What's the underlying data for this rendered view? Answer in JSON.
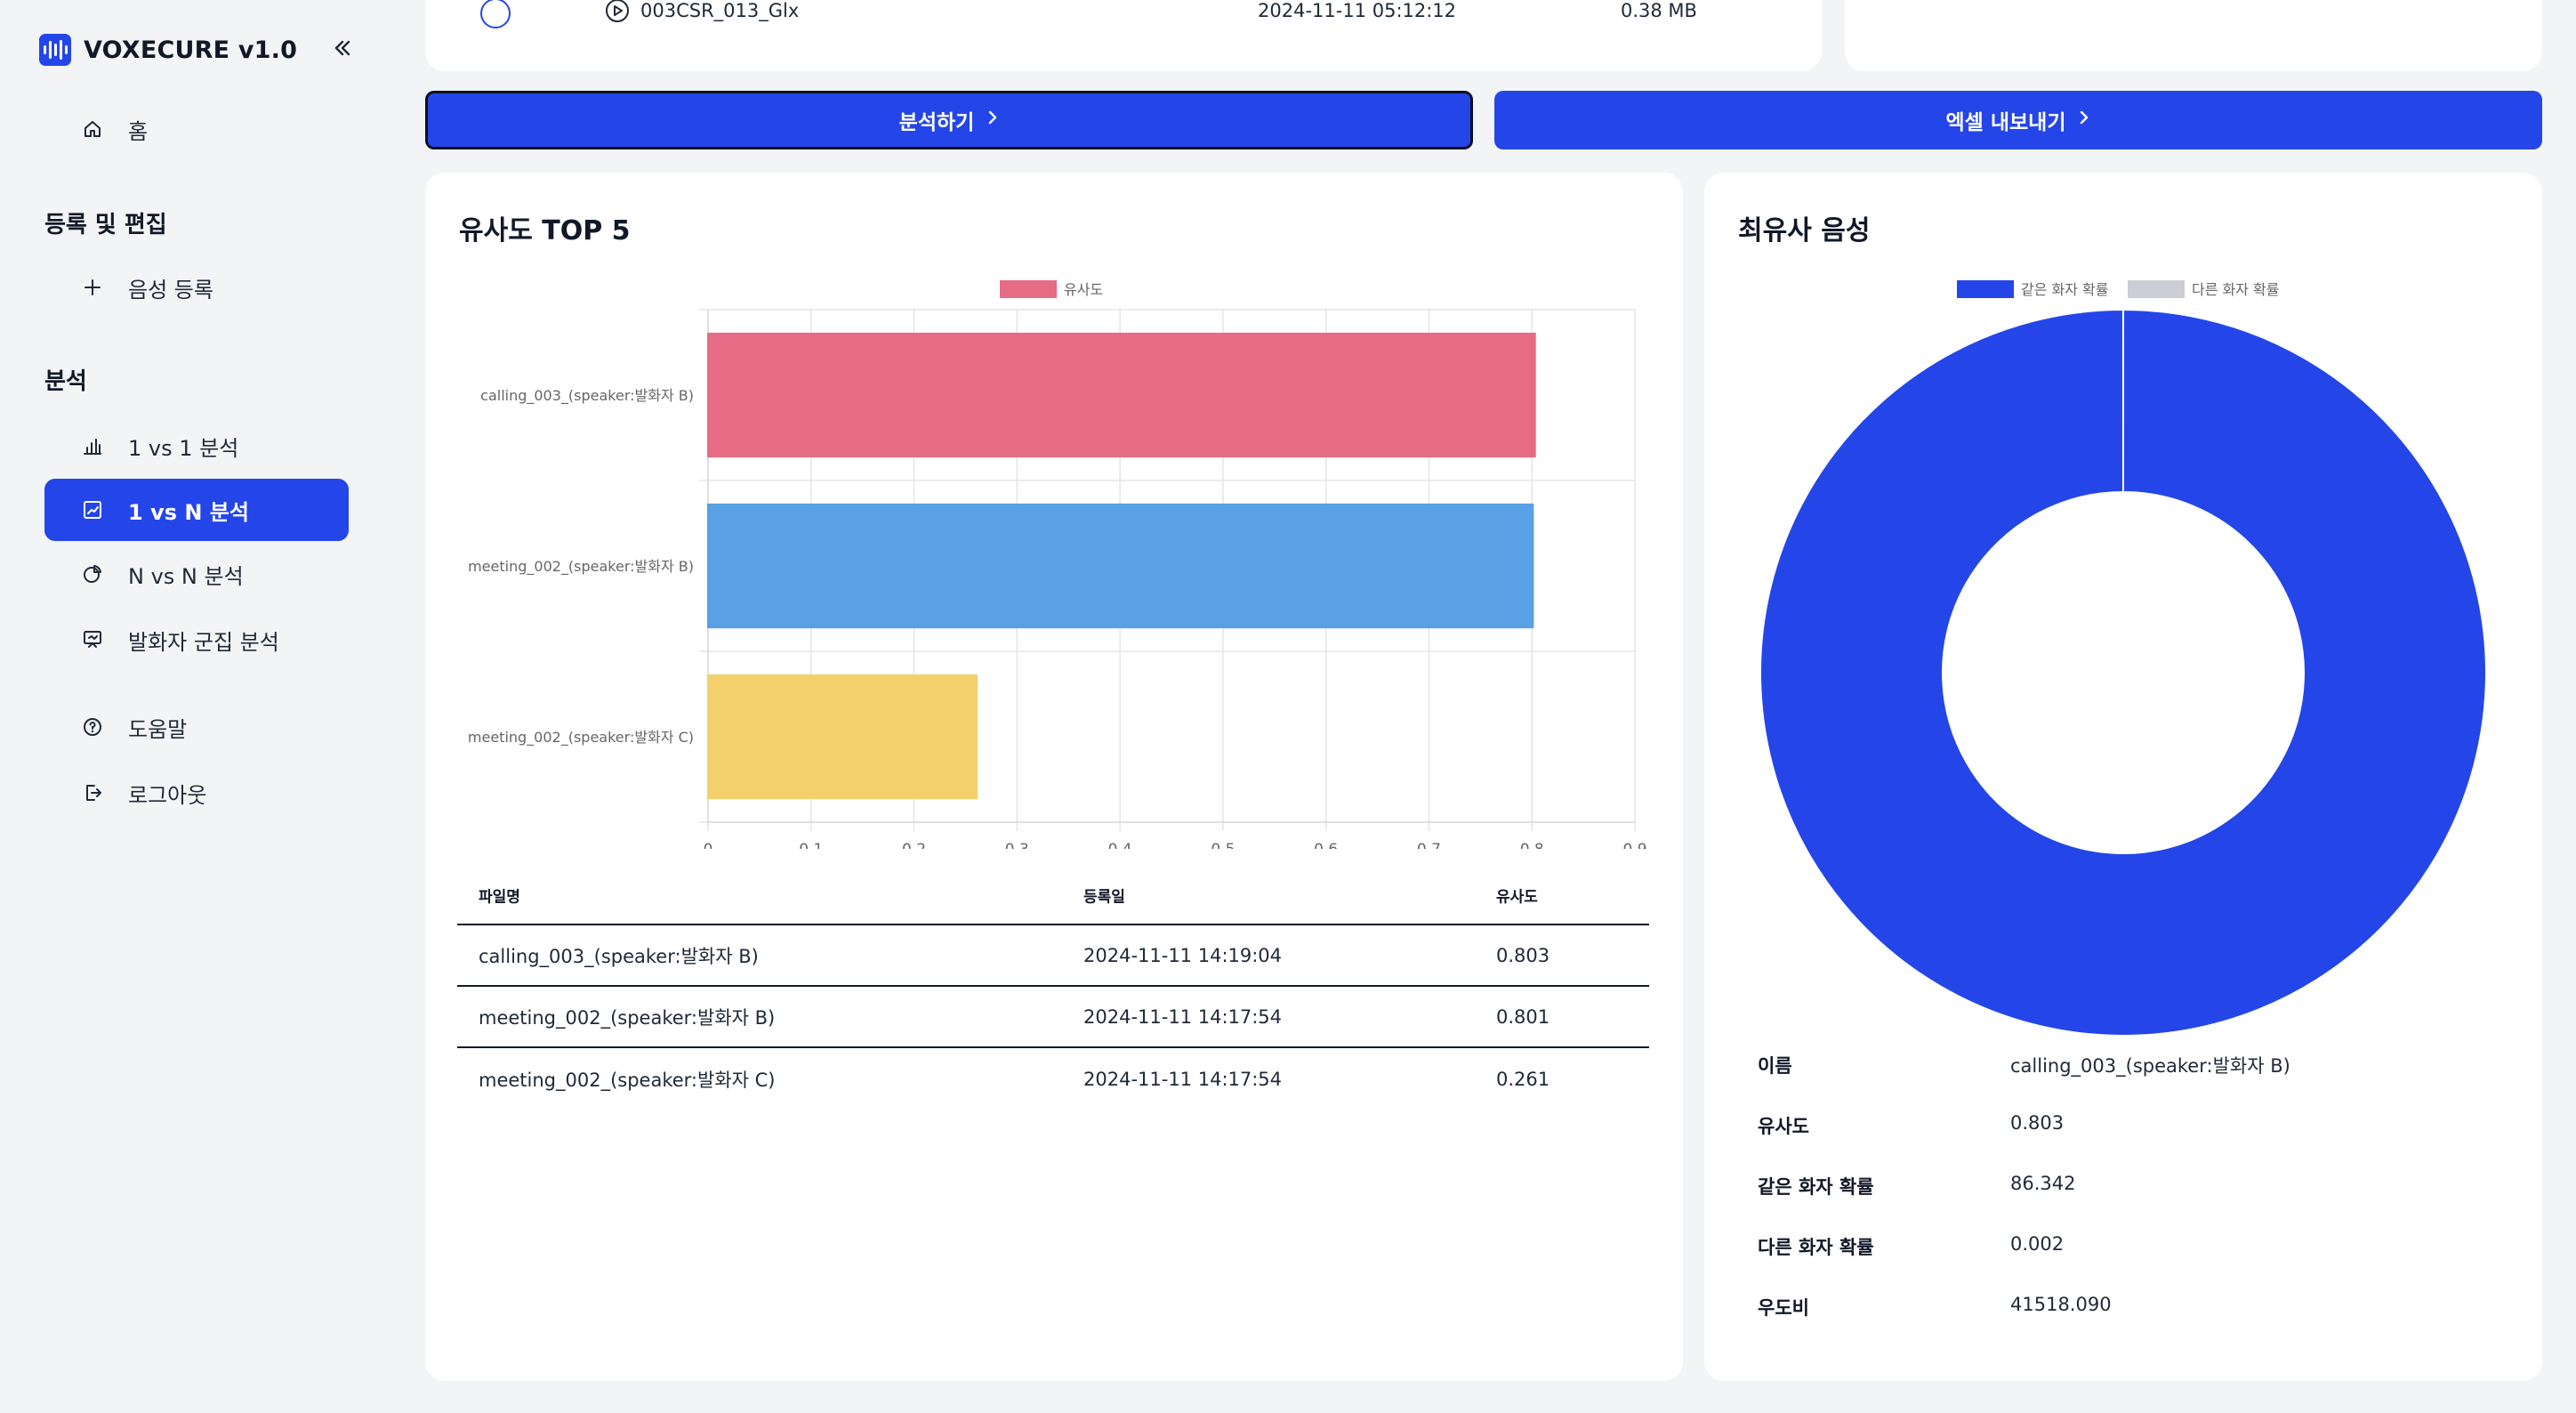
{
  "app": {
    "title": "VOXECURE v1.0"
  },
  "sidebar": {
    "home": "홈",
    "section_register": "등록 및 편집",
    "register_voice": "음성 등록",
    "section_analysis": "분석",
    "items": [
      {
        "label": "1 vs 1 분석",
        "active": false
      },
      {
        "label": "1 vs N 분석",
        "active": true
      },
      {
        "label": "N vs N 분석",
        "active": false
      },
      {
        "label": "발화자 군집 분석",
        "active": false
      }
    ],
    "help": "도움말",
    "logout": "로그아웃"
  },
  "file_row": {
    "name": "003CSR_013_Glx",
    "date": "2024-11-11 05:12:12",
    "size": "0.38 MB"
  },
  "actions": {
    "analyze": "분석하기",
    "export": "엑셀 내보내기"
  },
  "similarity_card": {
    "title": "유사도 TOP 5",
    "table": {
      "headers": {
        "file": "파일명",
        "date": "등록일",
        "score": "유사도"
      },
      "rows": [
        {
          "file": "calling_003_(speaker:발화자 B)",
          "date": "2024-11-11 14:19:04",
          "score": "0.803"
        },
        {
          "file": "meeting_002_(speaker:발화자 B)",
          "date": "2024-11-11 14:17:54",
          "score": "0.801"
        },
        {
          "file": "meeting_002_(speaker:발화자 C)",
          "date": "2024-11-11 14:17:54",
          "score": "0.261"
        }
      ]
    }
  },
  "nearest_card": {
    "title": "최유사 음성",
    "info": [
      {
        "key": "이름",
        "value": "calling_003_(speaker:발화자 B)"
      },
      {
        "key": "유사도",
        "value": "0.803"
      },
      {
        "key": "같은 화자 확률",
        "value": "86.342"
      },
      {
        "key": "다른 화자 확률",
        "value": "0.002"
      },
      {
        "key": "우도비",
        "value": "41518.090"
      }
    ]
  },
  "chart_data": [
    {
      "type": "bar",
      "orientation": "horizontal",
      "categories": [
        "calling_003_(speaker:발화자 B)",
        "meeting_002_(speaker:발화자 B)",
        "meeting_002_(speaker:발화자 C)"
      ],
      "series": [
        {
          "name": "유사도",
          "values": [
            0.803,
            0.801,
            0.261
          ]
        }
      ],
      "bar_colors": [
        "#e56c84",
        "#59a0e4",
        "#f3d06c"
      ],
      "legend_color": "#e56c84",
      "xlim": [
        0,
        0.9
      ],
      "xticks": [
        "0",
        "0.1",
        "0.2",
        "0.3",
        "0.4",
        "0.5",
        "0.6",
        "0.7",
        "0.8",
        "0.9"
      ],
      "grid": true,
      "legend": "top"
    },
    {
      "type": "pie",
      "variant": "donut",
      "labels": [
        "같은 화자 확률",
        "다른 화자 확률"
      ],
      "values": [
        86.342,
        0.002
      ],
      "colors": [
        "#2446e8",
        "#cdcdd6"
      ],
      "legend": "top"
    }
  ]
}
